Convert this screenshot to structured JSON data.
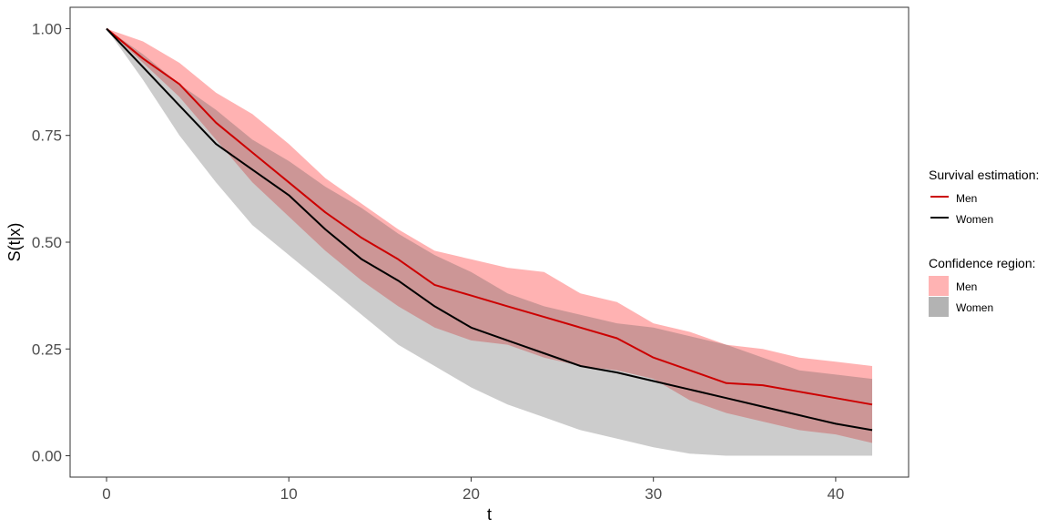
{
  "chart_data": {
    "type": "line",
    "xlabel": "t",
    "ylabel": "S(t|x)",
    "xlim": [
      -2,
      44
    ],
    "ylim": [
      -0.05,
      1.05
    ],
    "x_ticks": [
      0,
      10,
      20,
      30,
      40
    ],
    "y_ticks": [
      0.0,
      0.25,
      0.5,
      0.75,
      1.0
    ],
    "x_tick_labels": [
      "0",
      "10",
      "20",
      "30",
      "40"
    ],
    "y_tick_labels": [
      "0.00",
      "0.25",
      "0.50",
      "0.75",
      "1.00"
    ],
    "grid": false,
    "legend_placement": "right",
    "x": [
      0,
      2,
      4,
      6,
      8,
      10,
      12,
      14,
      16,
      18,
      20,
      22,
      24,
      26,
      28,
      30,
      32,
      34,
      36,
      38,
      40,
      42
    ],
    "series": [
      {
        "name": "Men",
        "color": "#cc0000",
        "values": [
          1.0,
          0.93,
          0.87,
          0.78,
          0.71,
          0.64,
          0.57,
          0.51,
          0.46,
          0.4,
          0.375,
          0.35,
          0.325,
          0.3,
          0.275,
          0.23,
          0.2,
          0.17,
          0.165,
          0.15,
          0.135,
          0.12
        ],
        "lower": [
          1.0,
          0.92,
          0.84,
          0.74,
          0.64,
          0.56,
          0.48,
          0.41,
          0.35,
          0.3,
          0.27,
          0.26,
          0.23,
          0.21,
          0.2,
          0.18,
          0.13,
          0.1,
          0.08,
          0.06,
          0.05,
          0.03
        ],
        "upper": [
          1.0,
          0.97,
          0.92,
          0.85,
          0.8,
          0.73,
          0.65,
          0.59,
          0.53,
          0.48,
          0.46,
          0.44,
          0.43,
          0.38,
          0.36,
          0.31,
          0.29,
          0.26,
          0.25,
          0.23,
          0.22,
          0.21
        ]
      },
      {
        "name": "Women",
        "color": "#000000",
        "values": [
          1.0,
          0.91,
          0.82,
          0.73,
          0.67,
          0.61,
          0.53,
          0.46,
          0.41,
          0.35,
          0.3,
          0.27,
          0.24,
          0.21,
          0.195,
          0.175,
          0.155,
          0.135,
          0.115,
          0.095,
          0.075,
          0.06
        ],
        "lower": [
          1.0,
          0.88,
          0.75,
          0.64,
          0.54,
          0.47,
          0.4,
          0.33,
          0.26,
          0.21,
          0.16,
          0.12,
          0.09,
          0.06,
          0.04,
          0.02,
          0.005,
          0.0,
          0.0,
          0.0,
          0.0,
          0.0
        ],
        "upper": [
          1.0,
          0.94,
          0.87,
          0.81,
          0.74,
          0.69,
          0.63,
          0.58,
          0.52,
          0.47,
          0.43,
          0.38,
          0.35,
          0.33,
          0.31,
          0.3,
          0.28,
          0.26,
          0.23,
          0.2,
          0.19,
          0.18
        ]
      }
    ]
  },
  "legend": {
    "line_title": "Survival estimation:",
    "band_title": "Confidence region:",
    "items": [
      {
        "label": "Men",
        "line_color": "#cc0000",
        "fill_color": "#ffb3b3"
      },
      {
        "label": "Women",
        "line_color": "#000000",
        "fill_color": "#b3b3b3"
      }
    ]
  },
  "colors": {
    "men_band": "#ff0000",
    "women_band": "#555555",
    "axis": "#333333"
  }
}
